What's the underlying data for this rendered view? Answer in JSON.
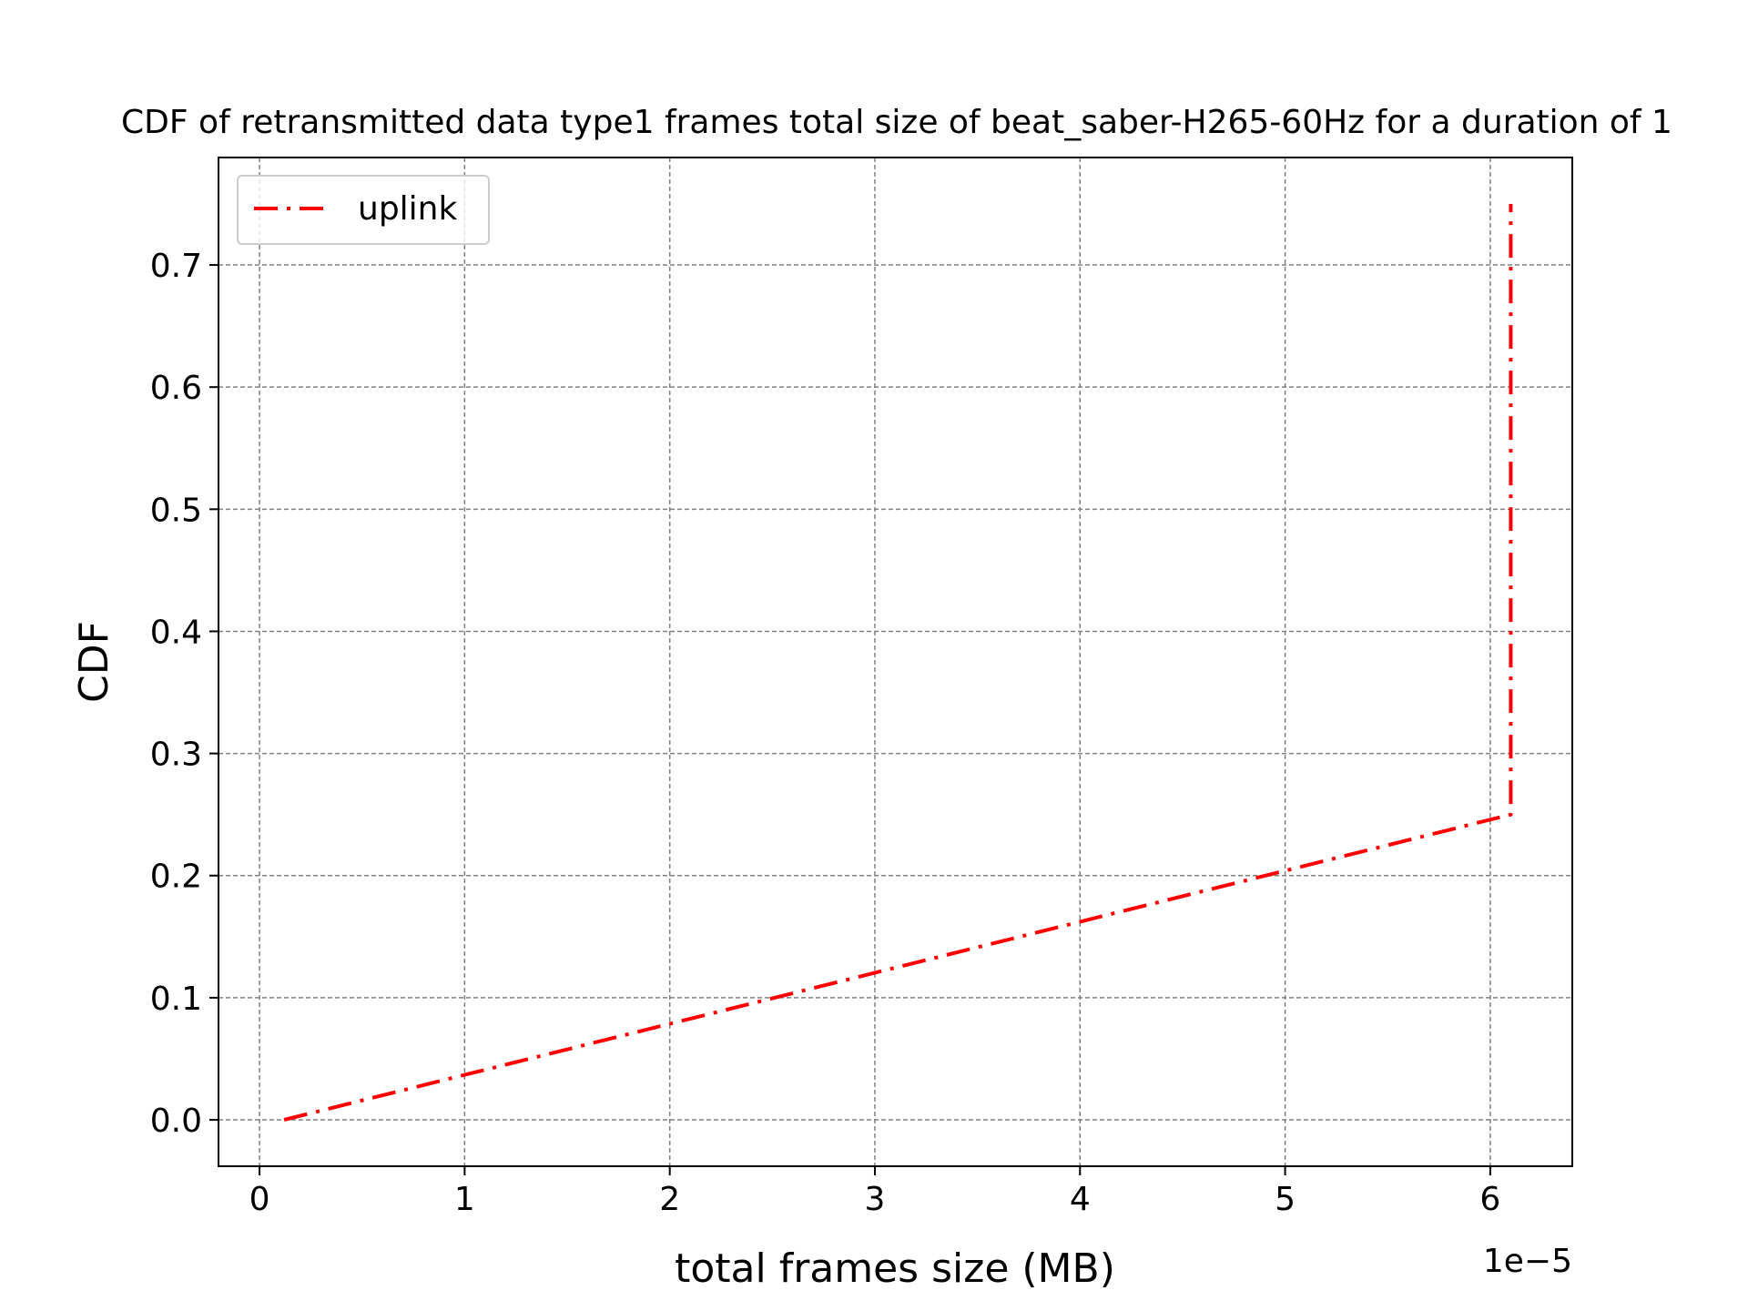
{
  "chart_data": {
    "type": "line",
    "title": "CDF of retransmitted data type1 frames total size of beat_saber-H265-60Hz for a duration of 1",
    "xlabel": "total frames size (MB)",
    "ylabel": "CDF",
    "x_offset_label": "1e−5",
    "xlim": [
      -0.2,
      6.4
    ],
    "ylim": [
      -0.038,
      0.788
    ],
    "x_ticks": [
      0,
      1,
      2,
      3,
      4,
      5,
      6
    ],
    "x_tick_labels": [
      "0",
      "1",
      "2",
      "3",
      "4",
      "5",
      "6"
    ],
    "y_ticks": [
      0.0,
      0.1,
      0.2,
      0.3,
      0.4,
      0.5,
      0.6,
      0.7
    ],
    "y_tick_labels": [
      "0.0",
      "0.1",
      "0.2",
      "0.3",
      "0.4",
      "0.5",
      "0.6",
      "0.7"
    ],
    "grid": true,
    "legend_position": "top-left",
    "series": [
      {
        "name": "uplink",
        "color": "#ff0000",
        "line_style": "dashdot",
        "x": [
          0.12,
          6.1,
          6.1
        ],
        "y": [
          0.0,
          0.25,
          0.75
        ]
      }
    ]
  }
}
